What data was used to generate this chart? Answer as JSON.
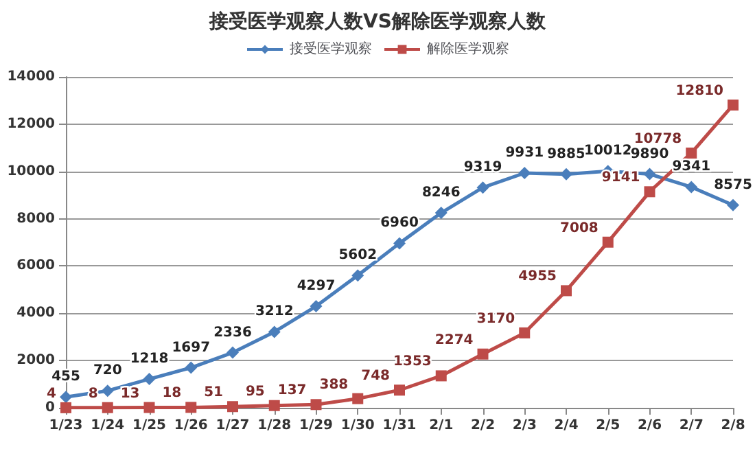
{
  "chart_data": {
    "type": "line",
    "title": "接受医学观察人数VS解除医学观察人数",
    "categories": [
      "1/23",
      "1/24",
      "1/25",
      "1/26",
      "1/27",
      "1/28",
      "1/29",
      "1/30",
      "1/31",
      "2/1",
      "2/2",
      "2/3",
      "2/4",
      "2/5",
      "2/6",
      "2/7",
      "2/8"
    ],
    "series": [
      {
        "name": "接受医学观察",
        "color": "#4a7ebb",
        "marker": "diamond",
        "values": [
          455,
          720,
          1218,
          1697,
          2336,
          3212,
          4297,
          5602,
          6960,
          8246,
          9319,
          9931,
          9885,
          10012,
          9890,
          9341,
          8575
        ]
      },
      {
        "name": "解除医学观察",
        "color": "#be4b48",
        "marker": "square",
        "values": [
          4,
          8,
          13,
          18,
          51,
          95,
          137,
          388,
          748,
          1353,
          2274,
          3170,
          4955,
          7008,
          9141,
          10778,
          12810
        ]
      }
    ],
    "ylim": [
      0,
      14000
    ],
    "yticks": [
      0,
      2000,
      4000,
      6000,
      8000,
      10000,
      12000,
      14000
    ],
    "grid": "y",
    "legend": "top",
    "data_labels": true
  }
}
